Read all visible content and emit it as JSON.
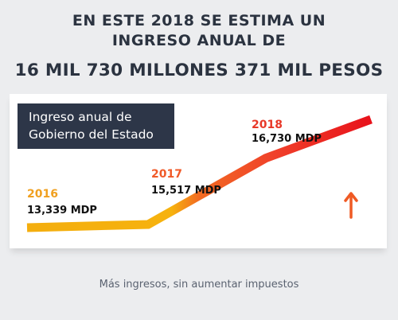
{
  "headline": {
    "line1": "EN ESTE 2018 SE ESTIMA UN",
    "line2": "INGRESO ANUAL DE",
    "line3": "16 MIL 730 MILLONES 371 MIL PESOS"
  },
  "chart_data": {
    "type": "line",
    "title_lines": [
      "Ingreso anual de",
      "Gobierno del Estado"
    ],
    "x": [
      "2016",
      "2017",
      "2018"
    ],
    "series": [
      {
        "values": [
          13339,
          15517,
          16730
        ]
      }
    ],
    "value_labels": [
      "13,339 MDP",
      "15,517 MDP",
      "16,730 MDP"
    ],
    "unit": "MDP",
    "grid": false,
    "legend": "none",
    "colors": {
      "start": "#f4ae0e",
      "mid": "#f15a24",
      "end": "#e8121b"
    }
  },
  "arrow_icon": "up-arrow-icon",
  "footer": "Más ingresos, sin aumentar impuestos"
}
